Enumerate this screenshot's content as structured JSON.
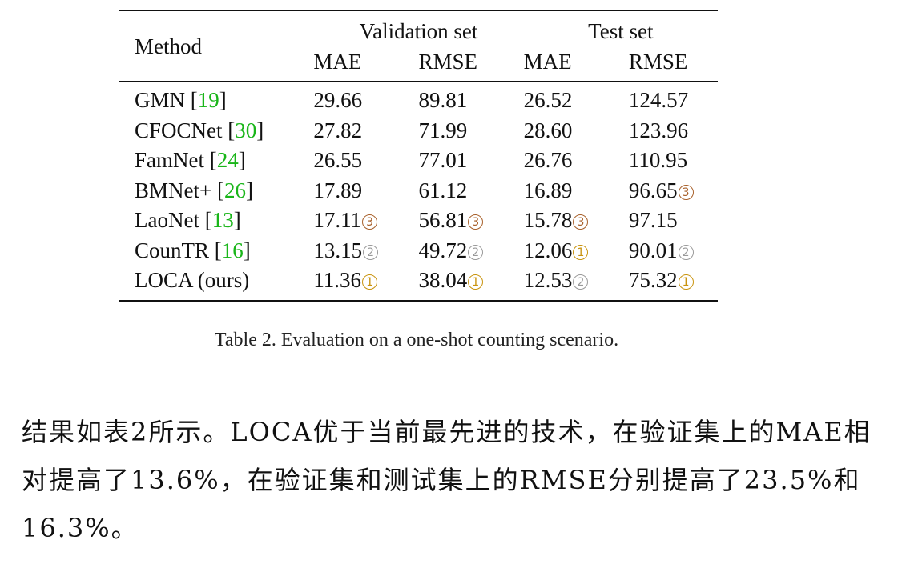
{
  "table": {
    "method_header": "Method",
    "group_headers": [
      "Validation set",
      "Test set"
    ],
    "metric_headers": [
      "MAE",
      "RMSE",
      "MAE",
      "RMSE"
    ],
    "rank_colors": {
      "1": "#c9930e",
      "2": "#9a9a9a",
      "3": "#a8602a"
    },
    "rank_glyphs": {
      "1": "1",
      "2": "2",
      "3": "3"
    },
    "rows": [
      {
        "method": "GMN",
        "ref": "19",
        "cells": [
          {
            "v": "29.66"
          },
          {
            "v": "89.81"
          },
          {
            "v": "26.52"
          },
          {
            "v": "124.57"
          }
        ]
      },
      {
        "method": "CFOCNet",
        "ref": "30",
        "cells": [
          {
            "v": "27.82"
          },
          {
            "v": "71.99"
          },
          {
            "v": "28.60"
          },
          {
            "v": "123.96"
          }
        ]
      },
      {
        "method": "FamNet",
        "ref": "24",
        "cells": [
          {
            "v": "26.55"
          },
          {
            "v": "77.01"
          },
          {
            "v": "26.76"
          },
          {
            "v": "110.95"
          }
        ]
      },
      {
        "method": "BMNet+",
        "ref": "26",
        "cells": [
          {
            "v": "17.89"
          },
          {
            "v": "61.12"
          },
          {
            "v": "16.89"
          },
          {
            "v": "96.65",
            "rank": 3
          }
        ]
      },
      {
        "method": "LaoNet",
        "ref": "13",
        "cells": [
          {
            "v": "17.11",
            "rank": 3
          },
          {
            "v": "56.81",
            "rank": 3
          },
          {
            "v": "15.78",
            "rank": 3
          },
          {
            "v": "97.15"
          }
        ]
      },
      {
        "method": "CounTR",
        "ref": "16",
        "cells": [
          {
            "v": "13.15",
            "rank": 2
          },
          {
            "v": "49.72",
            "rank": 2
          },
          {
            "v": "12.06",
            "rank": 1
          },
          {
            "v": "90.01",
            "rank": 2
          }
        ]
      },
      {
        "method": "LOCA (ours)",
        "ref": "",
        "cells": [
          {
            "v": "11.36",
            "rank": 1
          },
          {
            "v": "38.04",
            "rank": 1
          },
          {
            "v": "12.53",
            "rank": 2
          },
          {
            "v": "75.32",
            "rank": 1
          }
        ]
      }
    ]
  },
  "caption": "Table 2. Evaluation on a one-shot counting scenario.",
  "paragraph": "结果如表2所示。LOCA优于当前最先进的技术，在验证集上的MAE相对提高了13.6%，在验证集和测试集上的RMSE分别提高了23.5%和16.3%。"
}
